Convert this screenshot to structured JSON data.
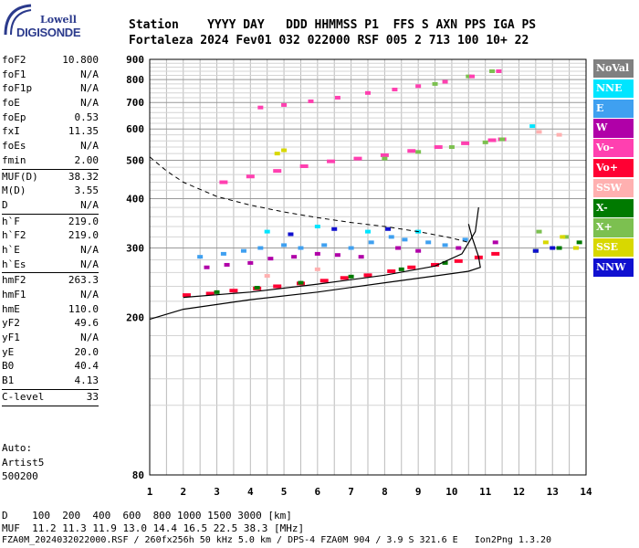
{
  "logo": {
    "line1": "Lowell",
    "line2": "DIGISONDE"
  },
  "header": {
    "row1": "Station    YYYY DAY   DDD HHMMSS P1  FFS S AXN PPS IGA PS",
    "row2": "Fortaleza 2024 Fev01 032 022000 RSF 005 2 713 100 10+ 22"
  },
  "parameters": [
    {
      "group": [
        {
          "label": "foF2",
          "value": "10.800"
        },
        {
          "label": "foF1",
          "value": "N/A"
        },
        {
          "label": "foF1p",
          "value": "N/A"
        },
        {
          "label": "foE",
          "value": "N/A"
        },
        {
          "label": "foEp",
          "value": "0.53"
        },
        {
          "label": "fxI",
          "value": "11.35"
        },
        {
          "label": "foEs",
          "value": "N/A"
        },
        {
          "label": "fmin",
          "value": "2.00"
        }
      ]
    },
    {
      "group": [
        {
          "label": "MUF(D)",
          "value": "38.32"
        },
        {
          "label": "M(D)",
          "value": "3.55"
        },
        {
          "label": "D",
          "value": "N/A"
        }
      ]
    },
    {
      "group": [
        {
          "label": "h`F",
          "value": "219.0"
        },
        {
          "label": "h`F2",
          "value": "219.0"
        },
        {
          "label": "h`E",
          "value": "N/A"
        },
        {
          "label": "h`Es",
          "value": "N/A"
        }
      ]
    },
    {
      "group": [
        {
          "label": "hmF2",
          "value": "263.3"
        },
        {
          "label": "hmF1",
          "value": "N/A"
        },
        {
          "label": "hmE",
          "value": "110.0"
        },
        {
          "label": "yF2",
          "value": "49.6"
        },
        {
          "label": "yF1",
          "value": "N/A"
        },
        {
          "label": "yE",
          "value": "20.0"
        },
        {
          "label": "B0",
          "value": "40.4"
        },
        {
          "label": "B1",
          "value": "4.13"
        }
      ]
    },
    {
      "group": [
        {
          "label": "C-level",
          "value": "33"
        }
      ]
    }
  ],
  "autoscaling": {
    "line1": "Auto:",
    "line2": "Artist5",
    "line3": "500200"
  },
  "legend": [
    {
      "label": "NoVal",
      "color": "#808080"
    },
    {
      "label": "NNE",
      "color": "#00e5ff"
    },
    {
      "label": "E",
      "color": "#3fa0f0"
    },
    {
      "label": "W",
      "color": "#b000a8"
    },
    {
      "label": "Vo-",
      "color": "#ff40b0"
    },
    {
      "label": "Vo+",
      "color": "#ff0033"
    },
    {
      "label": "SSW",
      "color": "#ffb0b0"
    },
    {
      "label": "X-",
      "color": "#007a00"
    },
    {
      "label": "X+",
      "color": "#7cc050"
    },
    {
      "label": "SSE",
      "color": "#d8d800"
    },
    {
      "label": "NNW",
      "color": "#1010d0"
    }
  ],
  "bottom": {
    "d_row": "D    100  200  400  600  800 1000 1500 3000 [km]",
    "muf_row": "MUF  11.2 11.3 11.9 13.0 14.4 16.5 22.5 38.3 [MHz]",
    "footer": "FZA0M_2024032022000.RSF / 260fx256h 50 kHz 5.0 km / DPS-4 FZA0M 904 / 3.9 S 321.6 E   Ion2Png 1.3.20"
  },
  "chart_data": {
    "type": "scatter",
    "xlim": [
      1,
      14
    ],
    "ylim": [
      80,
      900
    ],
    "y_scale": "log",
    "x_ticks": [
      1,
      2,
      3,
      4,
      5,
      6,
      7,
      8,
      9,
      10,
      11,
      12,
      13,
      14
    ],
    "y_ticks": [
      80,
      200,
      300,
      400,
      500,
      600,
      700,
      800,
      900
    ],
    "grid": true,
    "series": [
      {
        "name": "E",
        "points": [
          [
            2.5,
            285
          ],
          [
            3.2,
            290
          ],
          [
            3.8,
            295
          ],
          [
            4.3,
            300
          ],
          [
            5.0,
            305
          ],
          [
            5.5,
            300
          ],
          [
            6.2,
            305
          ],
          [
            7.0,
            300
          ],
          [
            7.6,
            310
          ],
          [
            8.2,
            320
          ],
          [
            8.6,
            315
          ],
          [
            9.3,
            310
          ],
          [
            9.8,
            305
          ],
          [
            10.4,
            315
          ]
        ]
      },
      {
        "name": "W",
        "points": [
          [
            2.7,
            268
          ],
          [
            3.3,
            272
          ],
          [
            4.0,
            275
          ],
          [
            4.6,
            282
          ],
          [
            5.3,
            285
          ],
          [
            6.0,
            290
          ],
          [
            6.6,
            288
          ],
          [
            7.3,
            285
          ],
          [
            8.4,
            300
          ],
          [
            9.0,
            295
          ],
          [
            10.2,
            300
          ],
          [
            11.3,
            310
          ]
        ]
      },
      {
        "name": "Vo+",
        "points": [
          [
            2.1,
            228
          ],
          [
            2.8,
            230
          ],
          [
            3.5,
            234
          ],
          [
            4.2,
            237
          ],
          [
            4.8,
            240
          ],
          [
            5.5,
            244
          ],
          [
            6.2,
            248
          ],
          [
            6.8,
            252
          ],
          [
            7.5,
            256
          ],
          [
            8.2,
            262
          ],
          [
            8.8,
            268
          ],
          [
            9.5,
            272
          ],
          [
            10.2,
            278
          ],
          [
            10.8,
            284
          ],
          [
            11.3,
            290
          ]
        ]
      },
      {
        "name": "Vo-",
        "points": [
          [
            3.2,
            440
          ],
          [
            4.0,
            455
          ],
          [
            4.8,
            470
          ],
          [
            5.6,
            483
          ],
          [
            6.4,
            497
          ],
          [
            7.2,
            505
          ],
          [
            8.0,
            515
          ],
          [
            8.8,
            528
          ],
          [
            9.6,
            540
          ],
          [
            10.4,
            552
          ],
          [
            11.2,
            562
          ],
          [
            11.5,
            565
          ]
        ]
      },
      {
        "name": "X-",
        "points": [
          [
            3.0,
            232
          ],
          [
            4.2,
            238
          ],
          [
            5.5,
            245
          ],
          [
            7.0,
            254
          ],
          [
            8.5,
            265
          ],
          [
            9.8,
            275
          ],
          [
            12.5,
            295
          ],
          [
            13.2,
            300
          ],
          [
            13.8,
            310
          ]
        ]
      },
      {
        "name": "X+",
        "points": [
          [
            8.0,
            505
          ],
          [
            9.0,
            525
          ],
          [
            10.0,
            540
          ],
          [
            11.0,
            555
          ],
          [
            11.5,
            565
          ],
          [
            9.5,
            780
          ],
          [
            10.5,
            815
          ],
          [
            11.2,
            840
          ],
          [
            12.6,
            330
          ],
          [
            13.4,
            320
          ]
        ]
      },
      {
        "name": "SSE",
        "points": [
          [
            5.0,
            530
          ],
          [
            4.8,
            520
          ],
          [
            12.8,
            310
          ],
          [
            13.3,
            320
          ],
          [
            13.7,
            300
          ]
        ]
      },
      {
        "name": "NNW",
        "points": [
          [
            5.2,
            325
          ],
          [
            6.5,
            335
          ],
          [
            8.1,
            335
          ],
          [
            12.5,
            295
          ],
          [
            13.0,
            300
          ]
        ]
      },
      {
        "name": "NNE",
        "points": [
          [
            4.5,
            330
          ],
          [
            6.0,
            340
          ],
          [
            7.5,
            330
          ],
          [
            9.0,
            330
          ],
          [
            12.4,
            610
          ]
        ]
      },
      {
        "name": "SSW",
        "points": [
          [
            4.5,
            255
          ],
          [
            6.0,
            265
          ],
          [
            12.6,
            590
          ],
          [
            13.2,
            580
          ]
        ]
      },
      {
        "name": "Vo- F2 2nd hop",
        "points": [
          [
            4.3,
            680
          ],
          [
            5.0,
            690
          ],
          [
            5.8,
            705
          ],
          [
            6.6,
            720
          ],
          [
            7.5,
            740
          ],
          [
            8.3,
            755
          ],
          [
            9.0,
            770
          ],
          [
            9.8,
            790
          ],
          [
            10.6,
            815
          ],
          [
            11.4,
            840
          ]
        ]
      }
    ],
    "trace_profile": [
      [
        1.0,
        198
      ],
      [
        2.0,
        210
      ],
      [
        4.0,
        222
      ],
      [
        6.0,
        232
      ],
      [
        8.0,
        245
      ],
      [
        9.5,
        255
      ],
      [
        10.5,
        262
      ],
      [
        10.85,
        268
      ],
      [
        10.8,
        285
      ],
      [
        10.6,
        320
      ],
      [
        10.5,
        345
      ]
    ],
    "trace_dashed": [
      [
        1.0,
        510
      ],
      [
        1.5,
        470
      ],
      [
        2.0,
        440
      ],
      [
        3.0,
        405
      ],
      [
        4.0,
        385
      ],
      [
        5.0,
        370
      ],
      [
        6.0,
        358
      ],
      [
        7.0,
        348
      ],
      [
        8.0,
        340
      ],
      [
        9.0,
        330
      ],
      [
        10.0,
        318
      ],
      [
        10.5,
        310
      ]
    ],
    "trace_fit": [
      [
        2.0,
        225
      ],
      [
        4.0,
        232
      ],
      [
        6.0,
        243
      ],
      [
        8.0,
        256
      ],
      [
        9.5,
        270
      ],
      [
        10.3,
        290
      ],
      [
        10.7,
        330
      ],
      [
        10.8,
        380
      ]
    ]
  }
}
